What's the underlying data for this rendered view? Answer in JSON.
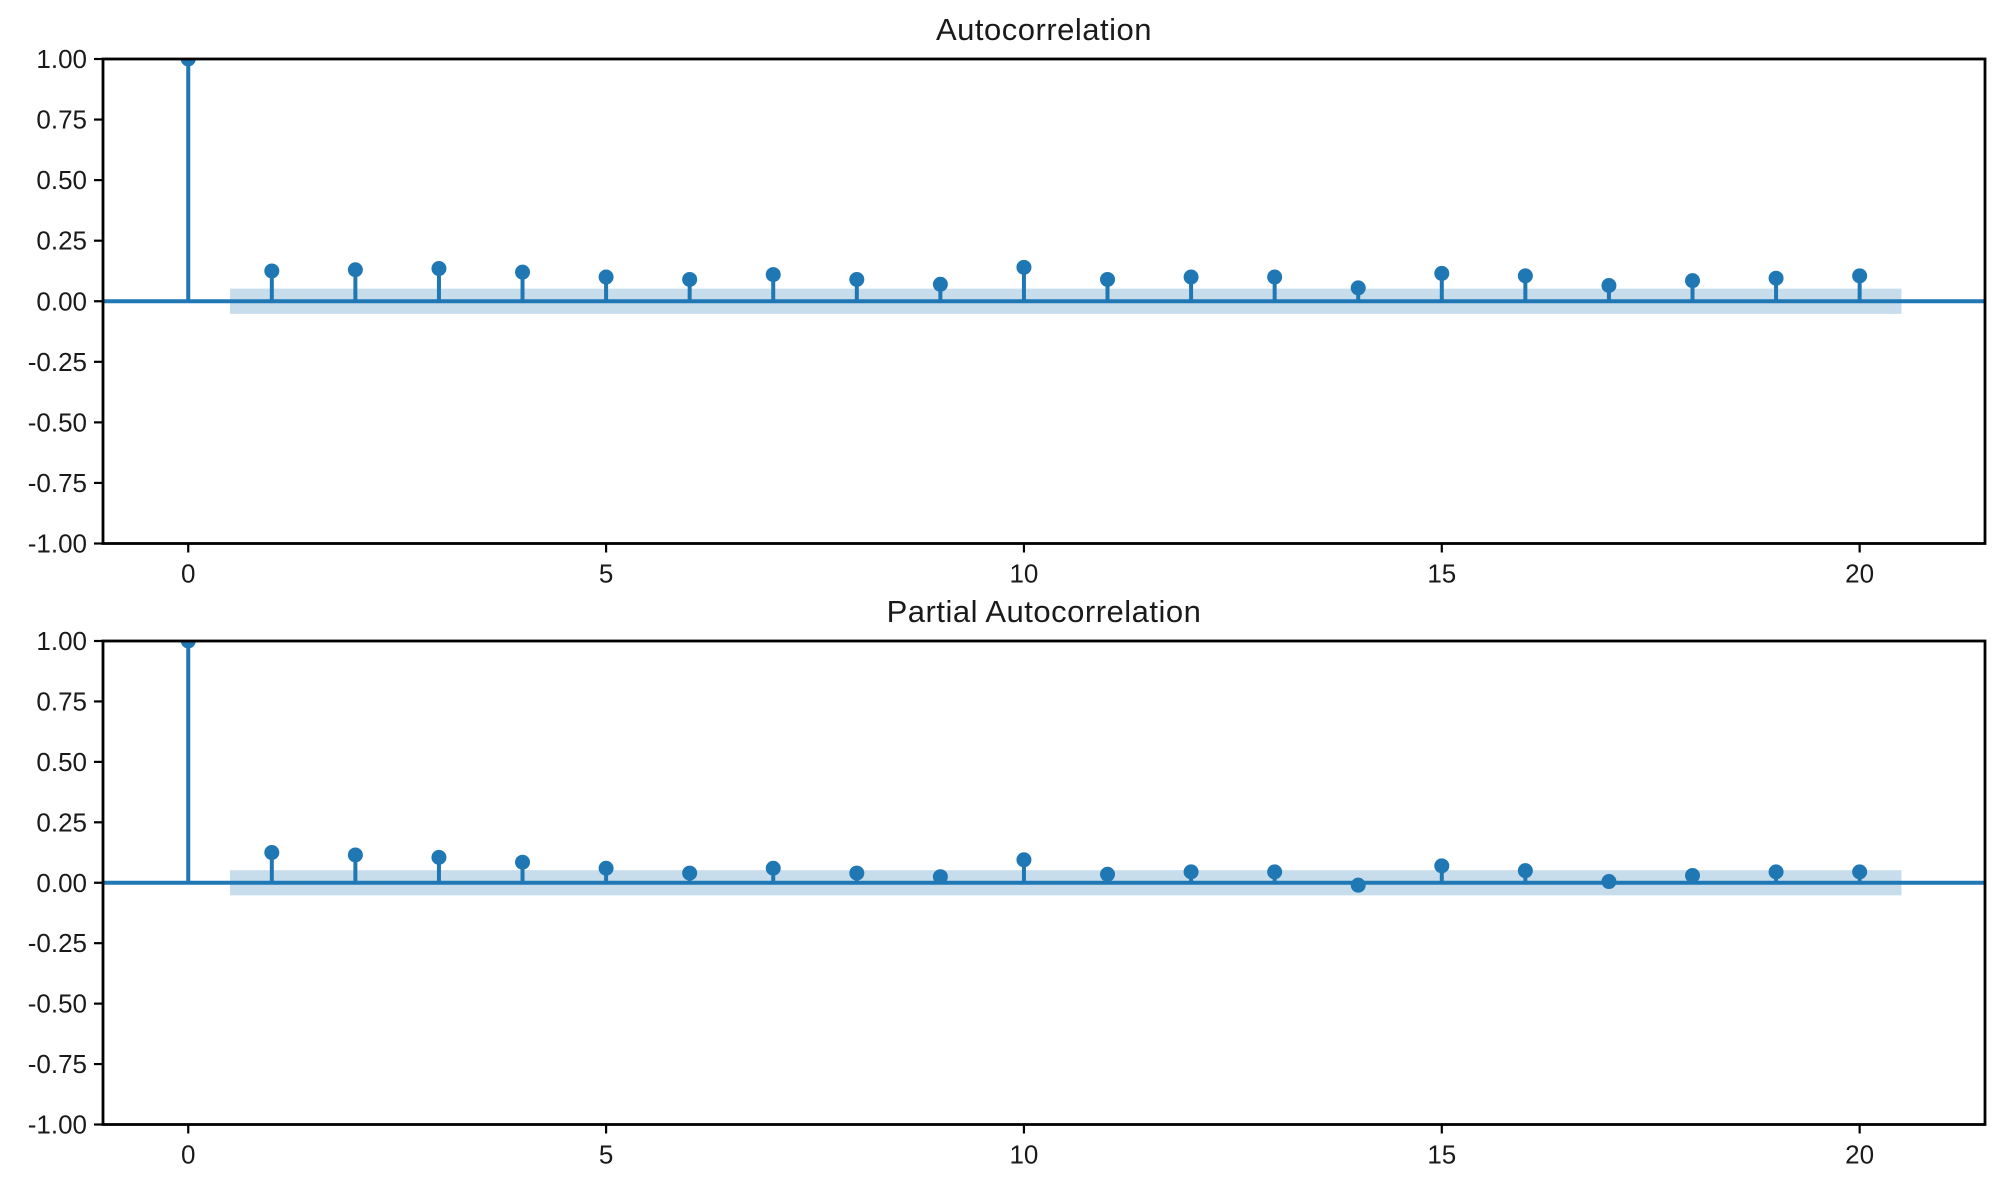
{
  "figure": {
    "background": "#ffffff",
    "accent_color": "#1f77b4",
    "band_color": "#c7ddec",
    "axis_color": "#000000",
    "tick_label_color": "#1a1a1a"
  },
  "chart_data": [
    {
      "type": "stem",
      "title": "Autocorrelation",
      "x": [
        0,
        1,
        2,
        3,
        4,
        5,
        6,
        7,
        8,
        9,
        10,
        11,
        12,
        13,
        14,
        15,
        16,
        17,
        18,
        19,
        20
      ],
      "values": [
        1.0,
        0.125,
        0.13,
        0.135,
        0.12,
        0.1,
        0.09,
        0.11,
        0.09,
        0.07,
        0.14,
        0.09,
        0.1,
        0.1,
        0.055,
        0.115,
        0.105,
        0.065,
        0.085,
        0.095,
        0.105
      ],
      "confidence_band_halfwidth": 0.052,
      "confidence_band_x_range": [
        0.5,
        20.5
      ],
      "xlim": [
        -1.02,
        21.5
      ],
      "ylim": [
        -1.0,
        1.0
      ],
      "xticks": [
        0,
        5,
        10,
        15,
        20
      ],
      "xtick_labels": [
        "0",
        "5",
        "10",
        "15",
        "20"
      ],
      "yticks": [
        1.0,
        0.75,
        0.5,
        0.25,
        0.0,
        -0.25,
        -0.5,
        -0.75,
        -1.0
      ],
      "ytick_labels": [
        "1.00",
        "0.75",
        "0.50",
        "0.25",
        "0.00",
        "-0.25",
        "-0.50",
        "-0.75",
        "-1.00"
      ],
      "grid": false,
      "legend": null
    },
    {
      "type": "stem",
      "title": "Partial Autocorrelation",
      "x": [
        0,
        1,
        2,
        3,
        4,
        5,
        6,
        7,
        8,
        9,
        10,
        11,
        12,
        13,
        14,
        15,
        16,
        17,
        18,
        19,
        20
      ],
      "values": [
        1.0,
        0.125,
        0.115,
        0.105,
        0.085,
        0.06,
        0.04,
        0.06,
        0.04,
        0.025,
        0.095,
        0.035,
        0.045,
        0.045,
        -0.01,
        0.07,
        0.05,
        0.005,
        0.03,
        0.045,
        0.045
      ],
      "confidence_band_halfwidth": 0.052,
      "confidence_band_x_range": [
        0.5,
        20.5
      ],
      "xlim": [
        -1.02,
        21.5
      ],
      "ylim": [
        -1.0,
        1.0
      ],
      "xticks": [
        0,
        5,
        10,
        15,
        20
      ],
      "xtick_labels": [
        "0",
        "5",
        "10",
        "15",
        "20"
      ],
      "yticks": [
        1.0,
        0.75,
        0.5,
        0.25,
        0.0,
        -0.25,
        -0.5,
        -0.75,
        -1.0
      ],
      "ytick_labels": [
        "1.00",
        "0.75",
        "0.50",
        "0.25",
        "0.00",
        "-0.25",
        "-0.50",
        "-0.75",
        "-1.00"
      ],
      "grid": false,
      "legend": null
    }
  ]
}
